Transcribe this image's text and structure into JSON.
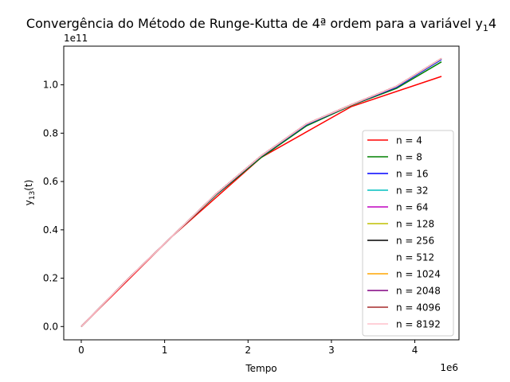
{
  "chart_data": {
    "type": "line",
    "title_main": "Convergência do Método de Runge-Kutta de 4ª ordem para a variável y",
    "title_sub": "1",
    "title_tail": "4",
    "xlabel": "Tempo",
    "ylabel_main": "y",
    "ylabel_sub": "13",
    "ylabel_tail": "(t)",
    "x_offset_label": "1e6",
    "y_offset_label": "1e11",
    "x_scale": 1000000,
    "y_scale": 100000000000,
    "xlim": [
      -0.21,
      4.53
    ],
    "ylim": [
      -0.055,
      1.16
    ],
    "xticks": [
      0,
      1,
      2,
      3,
      4
    ],
    "xtick_labels": [
      "0",
      "1",
      "2",
      "3",
      "4"
    ],
    "yticks": [
      0.0,
      0.2,
      0.4,
      0.6,
      0.8,
      1.0
    ],
    "ytick_labels": [
      "0.0",
      "0.2",
      "0.4",
      "0.6",
      "0.8",
      "1.0"
    ],
    "grid": false,
    "legend_position": "lower-right",
    "series": [
      {
        "name": "n = 4",
        "color": "#ff0000",
        "x": [
          0,
          1.08,
          2.16,
          3.24,
          4.32
        ],
        "y": [
          0,
          0.37,
          0.7,
          0.91,
          1.035
        ]
      },
      {
        "name": "n = 8",
        "color": "#008000",
        "x": [
          0,
          0.54,
          1.08,
          1.62,
          2.16,
          2.7,
          3.24,
          3.78,
          4.32
        ],
        "y": [
          0,
          0.19,
          0.37,
          0.545,
          0.7,
          0.83,
          0.915,
          0.985,
          1.095
        ]
      },
      {
        "name": "n = 16",
        "color": "#0000ff",
        "x": [
          0,
          0.54,
          1.08,
          1.62,
          2.16,
          2.7,
          3.24,
          3.78,
          4.32
        ],
        "y": [
          0,
          0.19,
          0.37,
          0.548,
          0.705,
          0.835,
          0.917,
          0.99,
          1.105
        ]
      },
      {
        "name": "n = 32",
        "color": "#00bfbf",
        "x": [
          0,
          0.54,
          1.08,
          1.62,
          2.16,
          2.7,
          3.24,
          3.78,
          4.32
        ],
        "y": [
          0,
          0.19,
          0.37,
          0.55,
          0.706,
          0.837,
          0.918,
          0.993,
          1.108
        ]
      },
      {
        "name": "n = 64",
        "color": "#bf00bf",
        "x": [
          0,
          0.54,
          1.08,
          1.62,
          2.16,
          2.7,
          3.24,
          3.78,
          4.32
        ],
        "y": [
          0,
          0.19,
          0.37,
          0.55,
          0.707,
          0.838,
          0.918,
          0.994,
          1.109
        ]
      },
      {
        "name": "n = 128",
        "color": "#bfbf00",
        "x": [
          0,
          0.54,
          1.08,
          1.62,
          2.16,
          2.7,
          3.24,
          3.78,
          4.32
        ],
        "y": [
          0,
          0.19,
          0.37,
          0.55,
          0.707,
          0.838,
          0.918,
          0.994,
          1.109
        ]
      },
      {
        "name": "n = 256",
        "color": "#000000",
        "x": [
          0,
          0.54,
          1.08,
          1.62,
          2.16,
          2.7,
          3.24,
          3.78,
          4.32
        ],
        "y": [
          0,
          0.19,
          0.37,
          0.55,
          0.707,
          0.838,
          0.918,
          0.994,
          1.109
        ]
      },
      {
        "name": "n = 512",
        "color": "#ffffff",
        "x": [
          0,
          0.54,
          1.08,
          1.62,
          2.16,
          2.7,
          3.24,
          3.78,
          4.32
        ],
        "y": [
          0,
          0.19,
          0.37,
          0.55,
          0.707,
          0.838,
          0.918,
          0.994,
          1.109
        ]
      },
      {
        "name": "n = 1024",
        "color": "#ffa500",
        "x": [
          0,
          0.54,
          1.08,
          1.62,
          2.16,
          2.7,
          3.24,
          3.78,
          4.32
        ],
        "y": [
          0,
          0.19,
          0.37,
          0.55,
          0.707,
          0.838,
          0.918,
          0.994,
          1.109
        ]
      },
      {
        "name": "n = 2048",
        "color": "#800080",
        "x": [
          0,
          0.54,
          1.08,
          1.62,
          2.16,
          2.7,
          3.24,
          3.78,
          4.32
        ],
        "y": [
          0,
          0.19,
          0.37,
          0.55,
          0.707,
          0.838,
          0.918,
          0.994,
          1.109
        ]
      },
      {
        "name": "n = 4096",
        "color": "#a52a2a",
        "x": [
          0,
          0.54,
          1.08,
          1.62,
          2.16,
          2.7,
          3.24,
          3.78,
          4.32
        ],
        "y": [
          0,
          0.19,
          0.37,
          0.55,
          0.707,
          0.838,
          0.918,
          0.994,
          1.109
        ]
      },
      {
        "name": "n = 8192",
        "color": "#ffc0cb",
        "x": [
          0,
          0.54,
          1.08,
          1.62,
          2.16,
          2.7,
          3.24,
          3.78,
          4.32
        ],
        "y": [
          0,
          0.19,
          0.37,
          0.55,
          0.707,
          0.838,
          0.918,
          0.994,
          1.109
        ]
      }
    ]
  }
}
